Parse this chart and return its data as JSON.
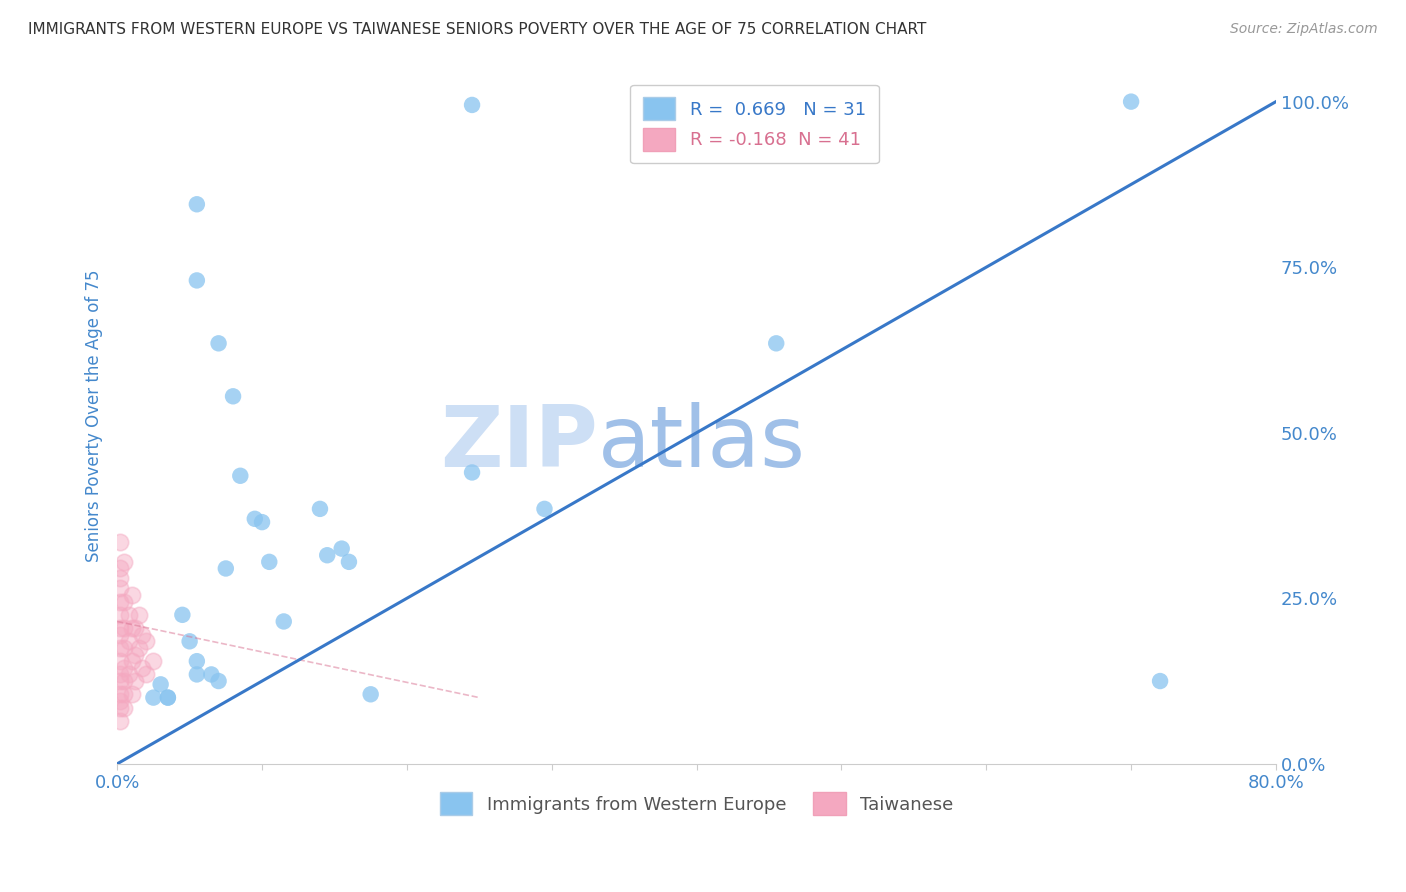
{
  "title": "IMMIGRANTS FROM WESTERN EUROPE VS TAIWANESE SENIORS POVERTY OVER THE AGE OF 75 CORRELATION CHART",
  "source": "Source: ZipAtlas.com",
  "ylabel": "Seniors Poverty Over the Age of 75",
  "xlim": [
    0.0,
    0.8
  ],
  "ylim": [
    0.0,
    1.05
  ],
  "R_blue": 0.669,
  "N_blue": 31,
  "R_pink": -0.168,
  "N_pink": 41,
  "blue_scatter_x": [
    0.245,
    0.055,
    0.055,
    0.07,
    0.08,
    0.085,
    0.095,
    0.14,
    0.245,
    0.295,
    0.1,
    0.105,
    0.045,
    0.05,
    0.055,
    0.055,
    0.065,
    0.07,
    0.075,
    0.115,
    0.145,
    0.155,
    0.16,
    0.175,
    0.455,
    0.7,
    0.72,
    0.03,
    0.035,
    0.035,
    0.025
  ],
  "blue_scatter_y": [
    0.995,
    0.845,
    0.73,
    0.635,
    0.555,
    0.435,
    0.37,
    0.385,
    0.44,
    0.385,
    0.365,
    0.305,
    0.225,
    0.185,
    0.155,
    0.135,
    0.135,
    0.125,
    0.295,
    0.215,
    0.315,
    0.325,
    0.305,
    0.105,
    0.635,
    1.0,
    0.125,
    0.12,
    0.1,
    0.1,
    0.1
  ],
  "pink_scatter_x": [
    0.002,
    0.002,
    0.002,
    0.002,
    0.002,
    0.002,
    0.002,
    0.002,
    0.002,
    0.002,
    0.002,
    0.002,
    0.002,
    0.002,
    0.002,
    0.002,
    0.005,
    0.005,
    0.005,
    0.005,
    0.005,
    0.005,
    0.005,
    0.005,
    0.008,
    0.008,
    0.008,
    0.01,
    0.01,
    0.01,
    0.01,
    0.012,
    0.012,
    0.012,
    0.015,
    0.015,
    0.017,
    0.017,
    0.02,
    0.02,
    0.025
  ],
  "pink_scatter_y": [
    0.335,
    0.295,
    0.28,
    0.265,
    0.245,
    0.225,
    0.205,
    0.195,
    0.175,
    0.155,
    0.135,
    0.125,
    0.105,
    0.095,
    0.085,
    0.065,
    0.305,
    0.245,
    0.205,
    0.175,
    0.145,
    0.125,
    0.105,
    0.085,
    0.225,
    0.185,
    0.135,
    0.255,
    0.205,
    0.155,
    0.105,
    0.205,
    0.165,
    0.125,
    0.225,
    0.175,
    0.195,
    0.145,
    0.185,
    0.135,
    0.155
  ],
  "blue_color": "#89c4ef",
  "pink_color": "#f4a8c0",
  "blue_line_color": "#3878c8",
  "pink_line_color": "#d87090",
  "watermark_zip": "ZIP",
  "watermark_atlas": "atlas",
  "watermark_color_zip": "#cddff5",
  "watermark_color_atlas": "#a0c0e8",
  "background_color": "#ffffff",
  "grid_color": "#cccccc",
  "title_color": "#333333",
  "axis_label_color": "#4488cc",
  "tick_label_color": "#4488cc",
  "blue_line_x": [
    0.0,
    0.8
  ],
  "blue_line_y": [
    0.0,
    1.0
  ],
  "pink_line_x": [
    0.0,
    0.25
  ],
  "pink_line_y": [
    0.215,
    0.1
  ]
}
